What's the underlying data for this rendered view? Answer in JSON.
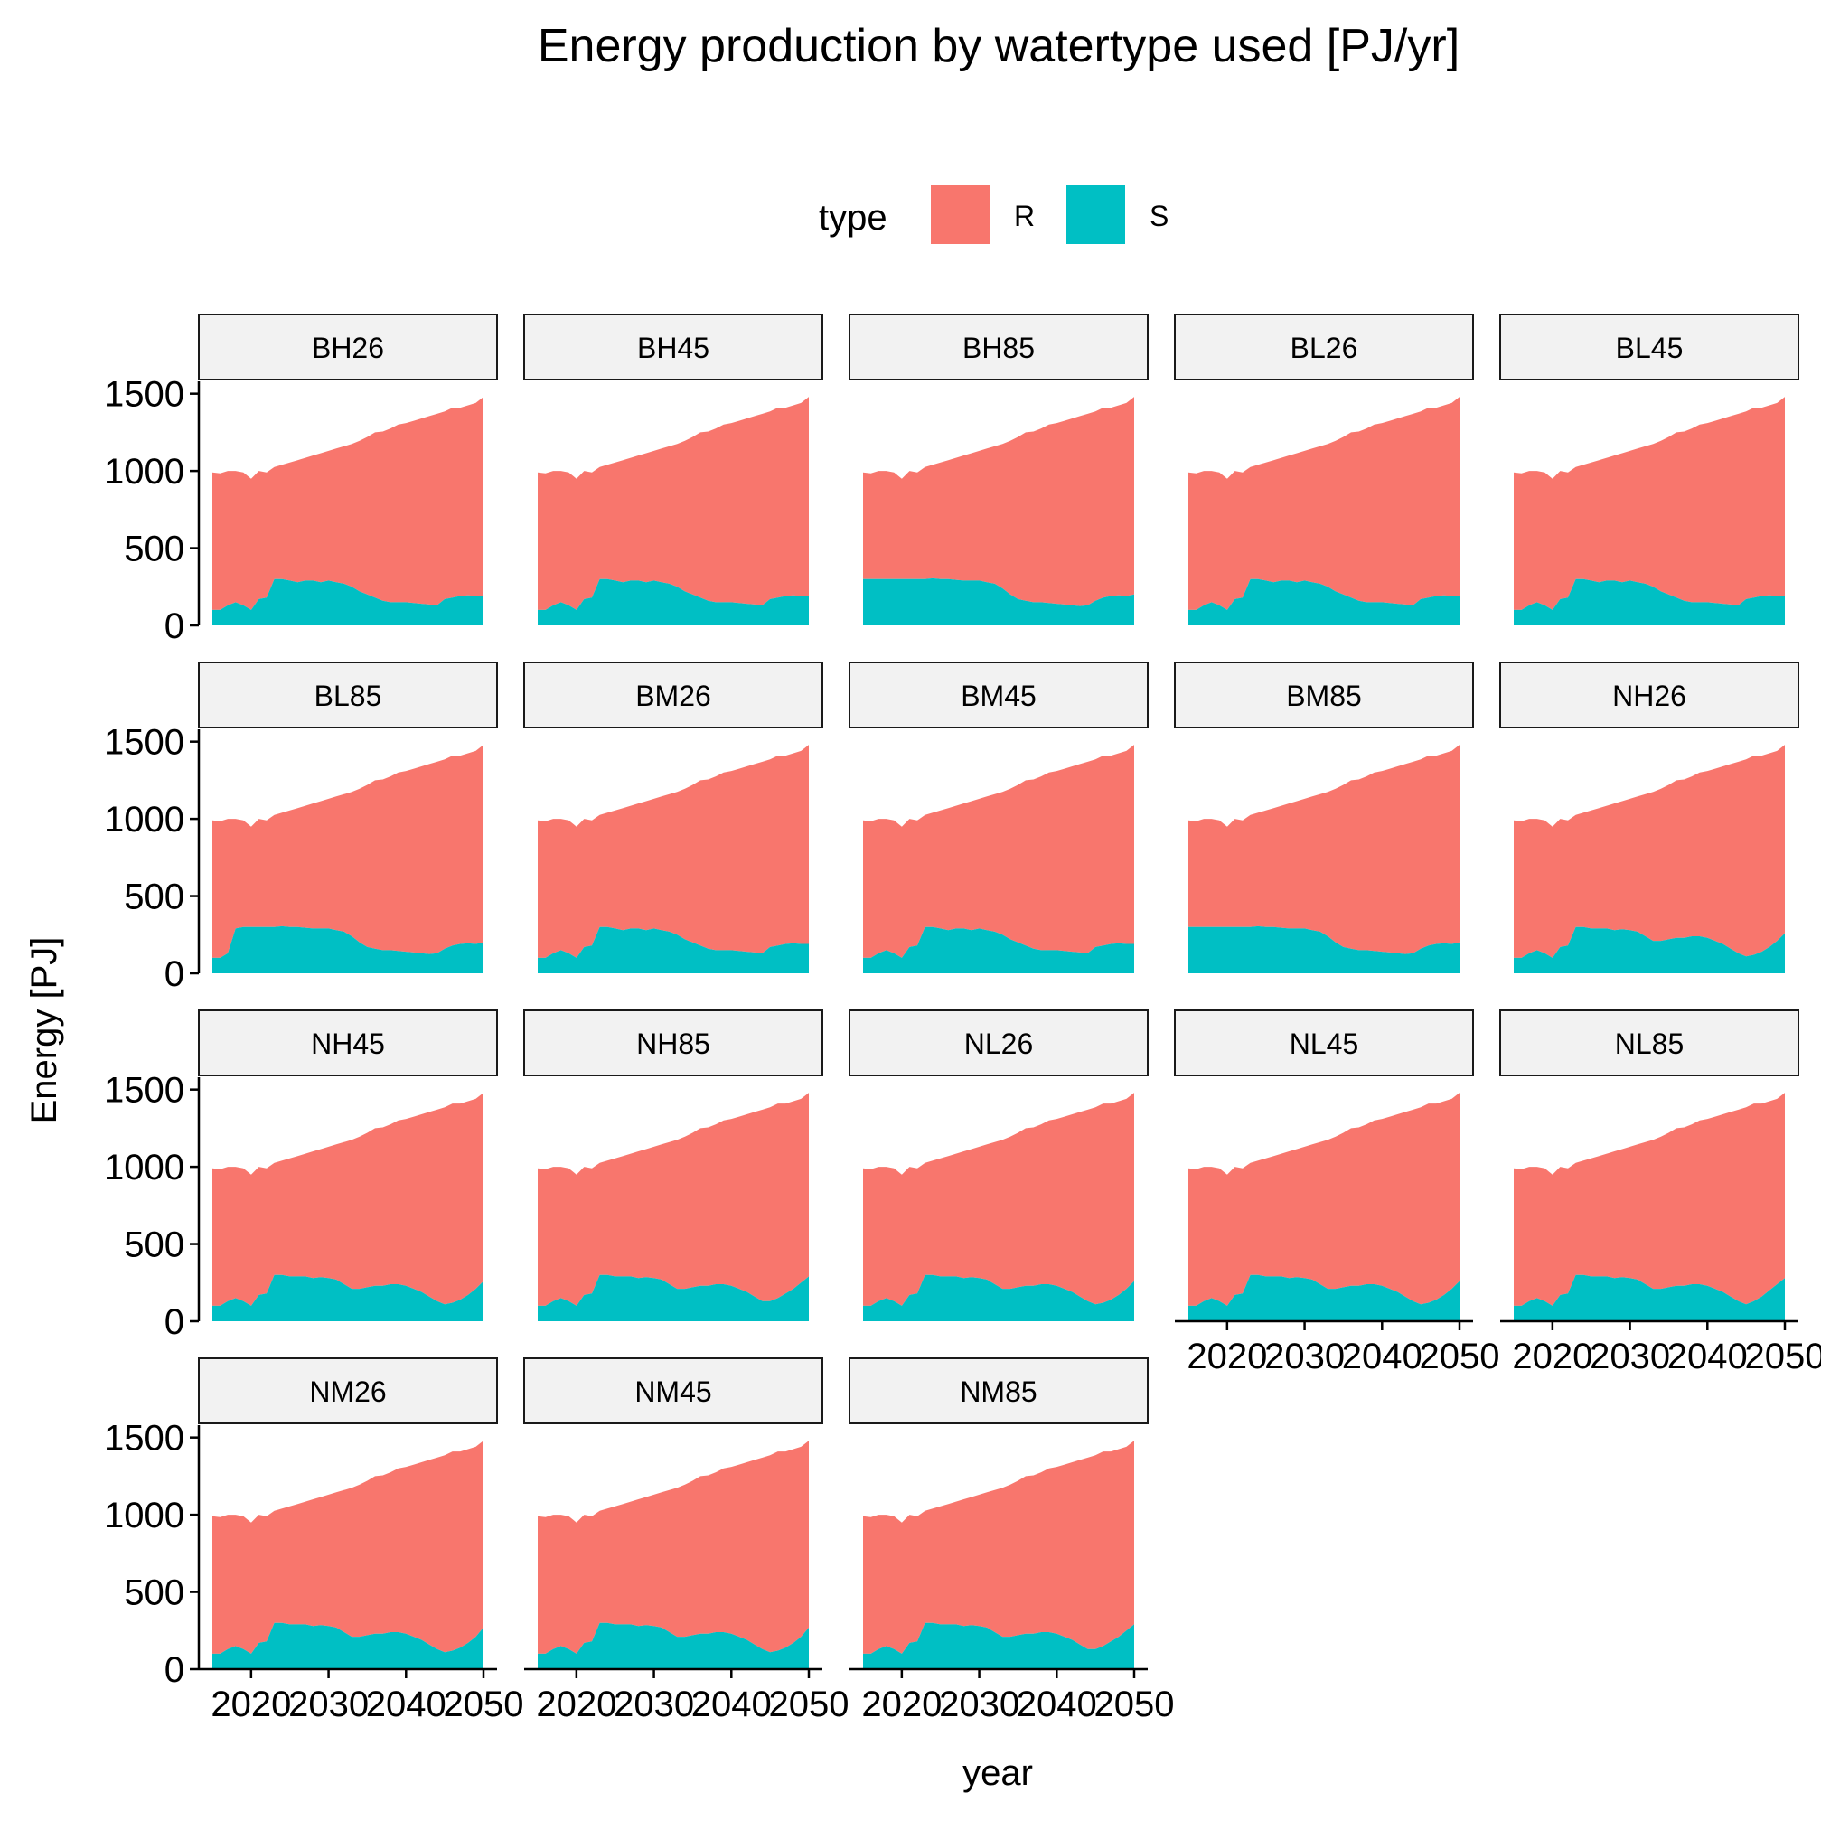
{
  "chart_data": {
    "type": "area",
    "stacked": true,
    "title": "Energy production by watertype used [PJ/yr]",
    "xlabel": "year",
    "ylabel": "Energy [PJ]",
    "ylim": [
      0,
      1500
    ],
    "xlim": [
      2015,
      2050
    ],
    "x_ticks": [
      2020,
      2030,
      2040,
      2050
    ],
    "y_ticks": [
      0,
      500,
      1000,
      1500
    ],
    "legend": {
      "title": "type",
      "position": "top",
      "entries": [
        {
          "name": "R",
          "color": "#F8766D"
        },
        {
          "name": "S",
          "color": "#00BFC4"
        }
      ]
    },
    "x": [
      2015,
      2016,
      2017,
      2018,
      2019,
      2020,
      2021,
      2022,
      2023,
      2024,
      2025,
      2026,
      2027,
      2028,
      2029,
      2030,
      2031,
      2032,
      2033,
      2034,
      2035,
      2036,
      2037,
      2038,
      2039,
      2040,
      2041,
      2042,
      2043,
      2044,
      2045,
      2046,
      2047,
      2048,
      2049,
      2050
    ],
    "total": [
      990,
      985,
      1000,
      1000,
      990,
      950,
      1000,
      990,
      1025,
      1040,
      1055,
      1070,
      1085,
      1100,
      1115,
      1130,
      1145,
      1160,
      1175,
      1195,
      1220,
      1250,
      1255,
      1275,
      1300,
      1310,
      1325,
      1340,
      1355,
      1370,
      1385,
      1410,
      1410,
      1425,
      1440,
      1480
    ],
    "facets": [
      {
        "label": "BH26",
        "S": [
          100,
          100,
          130,
          150,
          130,
          100,
          170,
          180,
          300,
          300,
          290,
          280,
          290,
          290,
          280,
          290,
          280,
          270,
          250,
          220,
          200,
          180,
          160,
          150,
          150,
          150,
          145,
          140,
          135,
          130,
          170,
          180,
          190,
          195,
          190,
          190
        ]
      },
      {
        "label": "BH45",
        "S": [
          100,
          100,
          130,
          150,
          130,
          100,
          170,
          180,
          300,
          300,
          290,
          280,
          290,
          290,
          280,
          290,
          280,
          270,
          250,
          220,
          200,
          180,
          160,
          150,
          150,
          150,
          145,
          140,
          135,
          130,
          170,
          180,
          190,
          195,
          190,
          190
        ]
      },
      {
        "label": "BH85",
        "S": [
          300,
          300,
          300,
          300,
          300,
          300,
          300,
          300,
          300,
          305,
          300,
          300,
          295,
          290,
          290,
          290,
          280,
          270,
          240,
          200,
          170,
          160,
          150,
          150,
          145,
          140,
          135,
          130,
          125,
          130,
          160,
          180,
          190,
          195,
          190,
          200
        ]
      },
      {
        "label": "BL26",
        "S": [
          100,
          100,
          130,
          150,
          130,
          100,
          170,
          180,
          300,
          300,
          290,
          280,
          290,
          290,
          280,
          290,
          280,
          270,
          250,
          220,
          200,
          180,
          160,
          150,
          150,
          150,
          145,
          140,
          135,
          130,
          170,
          180,
          190,
          195,
          190,
          190
        ]
      },
      {
        "label": "BL45",
        "S": [
          100,
          100,
          130,
          150,
          130,
          100,
          170,
          180,
          300,
          300,
          290,
          280,
          290,
          290,
          280,
          290,
          280,
          270,
          250,
          220,
          200,
          180,
          160,
          150,
          150,
          150,
          145,
          140,
          135,
          130,
          170,
          180,
          190,
          195,
          190,
          190
        ]
      },
      {
        "label": "BL85",
        "S": [
          100,
          100,
          130,
          290,
          300,
          300,
          300,
          300,
          300,
          305,
          300,
          300,
          295,
          290,
          290,
          290,
          280,
          270,
          240,
          200,
          170,
          160,
          150,
          150,
          145,
          140,
          135,
          130,
          125,
          130,
          160,
          180,
          190,
          195,
          190,
          200
        ]
      },
      {
        "label": "BM26",
        "S": [
          100,
          100,
          130,
          150,
          130,
          100,
          170,
          180,
          300,
          300,
          290,
          280,
          290,
          290,
          280,
          290,
          280,
          270,
          250,
          220,
          200,
          180,
          160,
          150,
          150,
          150,
          145,
          140,
          135,
          130,
          170,
          180,
          190,
          195,
          190,
          190
        ]
      },
      {
        "label": "BM45",
        "S": [
          100,
          100,
          130,
          150,
          130,
          100,
          170,
          180,
          300,
          300,
          290,
          280,
          290,
          290,
          280,
          290,
          280,
          270,
          250,
          220,
          200,
          180,
          160,
          150,
          150,
          150,
          145,
          140,
          135,
          130,
          170,
          180,
          190,
          195,
          190,
          190
        ]
      },
      {
        "label": "BM85",
        "S": [
          300,
          300,
          300,
          300,
          300,
          300,
          300,
          300,
          300,
          305,
          300,
          300,
          295,
          290,
          290,
          290,
          280,
          270,
          240,
          200,
          170,
          160,
          150,
          150,
          145,
          140,
          135,
          130,
          125,
          130,
          160,
          180,
          190,
          195,
          190,
          200
        ]
      },
      {
        "label": "NH26",
        "S": [
          100,
          100,
          130,
          150,
          130,
          100,
          170,
          180,
          300,
          300,
          290,
          290,
          290,
          280,
          285,
          280,
          270,
          240,
          210,
          210,
          220,
          230,
          230,
          240,
          240,
          230,
          210,
          190,
          160,
          130,
          110,
          120,
          140,
          170,
          210,
          260
        ]
      },
      {
        "label": "NH45",
        "S": [
          100,
          100,
          130,
          150,
          130,
          100,
          170,
          180,
          300,
          300,
          290,
          290,
          290,
          280,
          285,
          280,
          270,
          240,
          210,
          210,
          220,
          230,
          230,
          240,
          240,
          230,
          210,
          190,
          160,
          130,
          110,
          120,
          140,
          170,
          210,
          260
        ]
      },
      {
        "label": "NH85",
        "S": [
          100,
          100,
          130,
          150,
          130,
          100,
          170,
          180,
          300,
          300,
          290,
          290,
          290,
          280,
          285,
          280,
          270,
          240,
          210,
          210,
          220,
          230,
          230,
          240,
          240,
          230,
          210,
          190,
          160,
          130,
          130,
          150,
          180,
          210,
          250,
          290
        ]
      },
      {
        "label": "NL26",
        "S": [
          100,
          100,
          130,
          150,
          130,
          100,
          170,
          180,
          300,
          300,
          290,
          290,
          290,
          280,
          285,
          280,
          270,
          240,
          210,
          210,
          220,
          230,
          230,
          240,
          240,
          230,
          210,
          190,
          160,
          130,
          110,
          120,
          140,
          170,
          210,
          260
        ]
      },
      {
        "label": "NL45",
        "S": [
          100,
          100,
          130,
          150,
          130,
          100,
          170,
          180,
          300,
          300,
          290,
          290,
          290,
          280,
          285,
          280,
          270,
          240,
          210,
          210,
          220,
          230,
          230,
          240,
          240,
          230,
          210,
          190,
          160,
          130,
          110,
          120,
          140,
          170,
          210,
          260
        ]
      },
      {
        "label": "NL85",
        "S": [
          100,
          100,
          130,
          150,
          130,
          100,
          170,
          180,
          300,
          300,
          290,
          290,
          290,
          280,
          285,
          280,
          270,
          240,
          210,
          210,
          220,
          230,
          230,
          240,
          240,
          230,
          210,
          190,
          160,
          130,
          110,
          130,
          160,
          200,
          240,
          280
        ]
      },
      {
        "label": "NM26",
        "S": [
          100,
          100,
          130,
          150,
          130,
          100,
          170,
          180,
          300,
          300,
          290,
          290,
          290,
          280,
          285,
          280,
          270,
          240,
          210,
          210,
          220,
          230,
          230,
          240,
          240,
          230,
          210,
          190,
          160,
          130,
          110,
          120,
          140,
          170,
          210,
          270
        ]
      },
      {
        "label": "NM45",
        "S": [
          100,
          100,
          130,
          150,
          130,
          100,
          170,
          180,
          300,
          300,
          290,
          290,
          290,
          280,
          285,
          280,
          270,
          240,
          210,
          210,
          220,
          230,
          230,
          240,
          240,
          230,
          210,
          190,
          160,
          130,
          110,
          120,
          140,
          170,
          210,
          270
        ]
      },
      {
        "label": "NM85",
        "S": [
          100,
          100,
          130,
          150,
          130,
          100,
          170,
          180,
          300,
          300,
          290,
          290,
          290,
          280,
          285,
          280,
          270,
          240,
          210,
          210,
          220,
          230,
          230,
          240,
          240,
          230,
          210,
          190,
          160,
          130,
          130,
          150,
          180,
          210,
          250,
          290
        ]
      }
    ]
  }
}
